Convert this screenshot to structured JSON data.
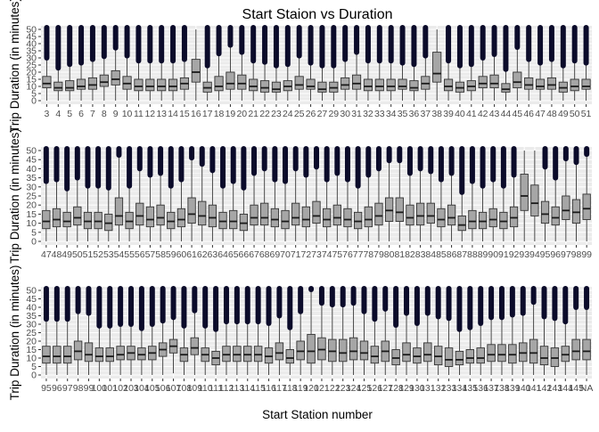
{
  "chart_data": {
    "type": "boxplot",
    "title": "Start Staion vs Duration",
    "xlabel": "Start Station number",
    "ylabel": "Trip Duration (in minutes)",
    "ylim": [
      0,
      50
    ],
    "yticks": [
      0,
      5,
      10,
      15,
      20,
      25,
      30,
      35,
      40,
      45,
      50
    ],
    "grid": true,
    "panels": [
      {
        "categories": [
          "3",
          "4",
          "5",
          "6",
          "7",
          "8",
          "9",
          "10",
          "11",
          "12",
          "13",
          "14",
          "15",
          "16",
          "17",
          "18",
          "19",
          "20",
          "21",
          "22",
          "23",
          "24",
          "25",
          "26",
          "27",
          "29",
          "30",
          "31",
          "32",
          "33",
          "34",
          "35",
          "36",
          "37",
          "38",
          "39",
          "40",
          "41",
          "42",
          "43",
          "44",
          "45",
          "46",
          "47",
          "48",
          "49",
          "50",
          "51"
        ],
        "medians": [
          12,
          9,
          9,
          10,
          11,
          13,
          15,
          12,
          10,
          10,
          10,
          10,
          12,
          20,
          9,
          10,
          12,
          12,
          10,
          9,
          8,
          10,
          11,
          10,
          8,
          9,
          11,
          12,
          10,
          10,
          10,
          10,
          9,
          12,
          19,
          10,
          9,
          10,
          12,
          12,
          8,
          13,
          11,
          10,
          11,
          9,
          10,
          10
        ],
        "q1": [
          9,
          7,
          7,
          8,
          8,
          10,
          11,
          8,
          7,
          7,
          7,
          7,
          8,
          13,
          6,
          7,
          8,
          8,
          7,
          6,
          6,
          7,
          8,
          8,
          6,
          6,
          8,
          8,
          7,
          7,
          7,
          8,
          7,
          8,
          13,
          7,
          6,
          7,
          9,
          9,
          6,
          9,
          8,
          8,
          8,
          6,
          7,
          8
        ],
        "q3": [
          17,
          13,
          14,
          15,
          16,
          18,
          21,
          17,
          15,
          15,
          15,
          15,
          16,
          29,
          13,
          17,
          20,
          18,
          15,
          14,
          13,
          14,
          17,
          15,
          13,
          13,
          16,
          18,
          15,
          15,
          15,
          15,
          14,
          17,
          34,
          15,
          13,
          14,
          17,
          18,
          12,
          20,
          16,
          15,
          16,
          13,
          15,
          15
        ]
      },
      {
        "categories": [
          "47",
          "48",
          "49",
          "50",
          "51",
          "52",
          "53",
          "54",
          "55",
          "56",
          "57",
          "58",
          "59",
          "60",
          "61",
          "62",
          "63",
          "64",
          "65",
          "66",
          "67",
          "68",
          "69",
          "70",
          "71",
          "72",
          "73",
          "74",
          "75",
          "76",
          "77",
          "78",
          "79",
          "80",
          "81",
          "82",
          "83",
          "84",
          "85",
          "86",
          "87",
          "88",
          "89",
          "90",
          "91",
          "92",
          "93",
          "94",
          "95",
          "96",
          "97",
          "98",
          "99"
        ],
        "medians": [
          11,
          12,
          11,
          13,
          11,
          11,
          10,
          14,
          11,
          14,
          12,
          13,
          11,
          12,
          15,
          14,
          13,
          11,
          11,
          10,
          13,
          13,
          12,
          11,
          13,
          12,
          14,
          12,
          13,
          12,
          11,
          12,
          14,
          17,
          16,
          13,
          14,
          14,
          12,
          13,
          9,
          11,
          11,
          12,
          11,
          13,
          25,
          21,
          15,
          13,
          17,
          16,
          18
        ],
        "q1": [
          7,
          8,
          8,
          9,
          7,
          7,
          6,
          9,
          7,
          9,
          8,
          9,
          7,
          8,
          10,
          9,
          8,
          7,
          7,
          6,
          9,
          9,
          8,
          7,
          9,
          8,
          10,
          8,
          9,
          8,
          7,
          8,
          9,
          11,
          11,
          9,
          9,
          10,
          8,
          9,
          6,
          7,
          7,
          8,
          7,
          8,
          17,
          14,
          10,
          9,
          12,
          10,
          12
        ],
        "q3": [
          17,
          18,
          16,
          19,
          16,
          16,
          15,
          24,
          16,
          21,
          19,
          20,
          16,
          18,
          24,
          22,
          20,
          16,
          17,
          15,
          20,
          21,
          18,
          17,
          21,
          19,
          22,
          18,
          20,
          18,
          16,
          19,
          21,
          24,
          24,
          20,
          21,
          21,
          18,
          20,
          14,
          17,
          16,
          18,
          16,
          19,
          37,
          31,
          22,
          19,
          25,
          23,
          26
        ]
      },
      {
        "categories": [
          "95",
          "96",
          "97",
          "98",
          "99",
          "100",
          "101",
          "102",
          "103",
          "104",
          "105",
          "106",
          "107",
          "108",
          "109",
          "110",
          "111",
          "112",
          "113",
          "114",
          "115",
          "116",
          "117",
          "118",
          "119",
          "120",
          "121",
          "122",
          "123",
          "124",
          "125",
          "126",
          "127",
          "128",
          "129",
          "130",
          "131",
          "132",
          "133",
          "134",
          "135",
          "136",
          "137",
          "138",
          "139",
          "140",
          "141",
          "142",
          "143",
          "144",
          "145",
          "NA"
        ],
        "medians": [
          11,
          11,
          11,
          14,
          12,
          11,
          11,
          12,
          13,
          12,
          13,
          15,
          17,
          12,
          16,
          12,
          10,
          12,
          12,
          12,
          12,
          11,
          13,
          10,
          14,
          14,
          15,
          14,
          13,
          14,
          13,
          11,
          14,
          10,
          12,
          11,
          12,
          11,
          9,
          9,
          10,
          10,
          12,
          12,
          12,
          13,
          13,
          10,
          10,
          12,
          14,
          14
        ],
        "q1": [
          7,
          7,
          7,
          9,
          8,
          8,
          8,
          9,
          9,
          9,
          9,
          11,
          13,
          8,
          12,
          8,
          6,
          8,
          8,
          8,
          8,
          7,
          9,
          7,
          9,
          7,
          9,
          8,
          8,
          9,
          9,
          7,
          8,
          6,
          8,
          7,
          8,
          6,
          5,
          6,
          7,
          7,
          8,
          8,
          7,
          8,
          7,
          6,
          5,
          8,
          9,
          9
        ],
        "q3": [
          17,
          17,
          17,
          20,
          19,
          16,
          16,
          17,
          17,
          16,
          17,
          19,
          21,
          16,
          22,
          16,
          14,
          17,
          17,
          17,
          17,
          16,
          19,
          15,
          20,
          24,
          22,
          21,
          21,
          22,
          20,
          17,
          20,
          15,
          19,
          16,
          19,
          17,
          16,
          14,
          15,
          16,
          18,
          18,
          18,
          19,
          21,
          17,
          16,
          17,
          21,
          21
        ]
      }
    ]
  }
}
